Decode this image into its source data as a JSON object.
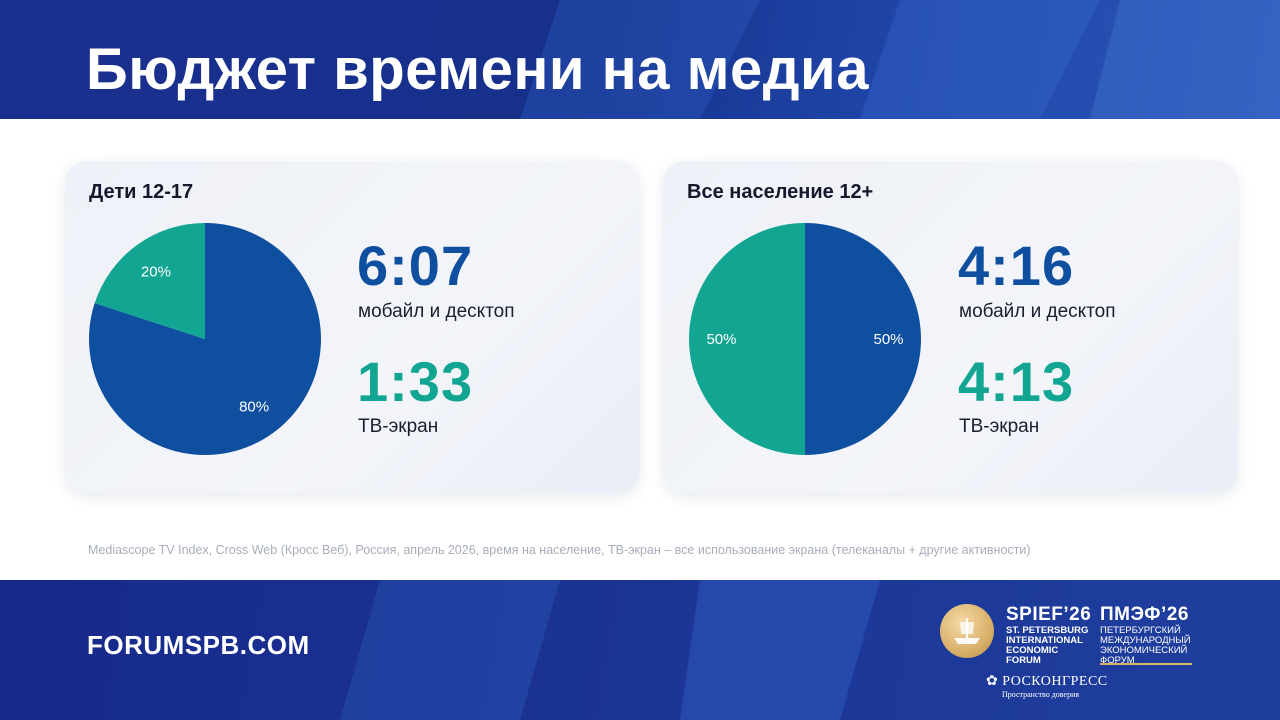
{
  "title": "Бюджет времени на медиа",
  "colors": {
    "mobile": "#0f4fa0",
    "tv": "#11a592",
    "band": "#1b2f8f"
  },
  "chart_data": [
    {
      "type": "pie",
      "title": "Дети 12-17",
      "slices": [
        {
          "name": "мобайл и десктоп",
          "value": 80,
          "label": "80%",
          "color": "#0f4fa0"
        },
        {
          "name": "ТВ-экран",
          "value": 20,
          "label": "20%",
          "color": "#11a592"
        }
      ],
      "stats": [
        {
          "value": "6:07",
          "label": "мобайл и десктоп"
        },
        {
          "value": "1:33",
          "label": "ТВ-экран"
        }
      ]
    },
    {
      "type": "pie",
      "title": "Все население 12+",
      "slices": [
        {
          "name": "мобайл и десктоп",
          "value": 50,
          "label": "50%",
          "color": "#0f4fa0"
        },
        {
          "name": "ТВ-экран",
          "value": 50,
          "label": "50%",
          "color": "#11a592"
        }
      ],
      "stats": [
        {
          "value": "4:16",
          "label": "мобайл и десктоп"
        },
        {
          "value": "4:13",
          "label": "ТВ-экран"
        }
      ]
    }
  ],
  "footnote": "Mediascope TV Index, Cross Web (Кросс Веб), Россия, апрель 2026, время на население, ТВ-экран – все использование экрана (телеканалы + другие активности)",
  "footer": {
    "site": "FORUMSPB.COM",
    "logo_en_big": "SPIEF’26",
    "logo_en_lines": [
      "ST. PETERSBURG",
      "INTERNATIONAL",
      "ECONOMIC",
      "FORUM"
    ],
    "logo_ru_big": "ПМЭФ’26",
    "logo_ru_lines": [
      "ПЕТЕРБУРГСКИЙ",
      "МЕЖДУНАРОДНЫЙ",
      "ЭКОНОМИЧЕСКИЙ",
      "ФОРУМ"
    ],
    "roscongress": "РОСКОНГРЕСС",
    "roscongress_sub": "Пространство доверия"
  }
}
